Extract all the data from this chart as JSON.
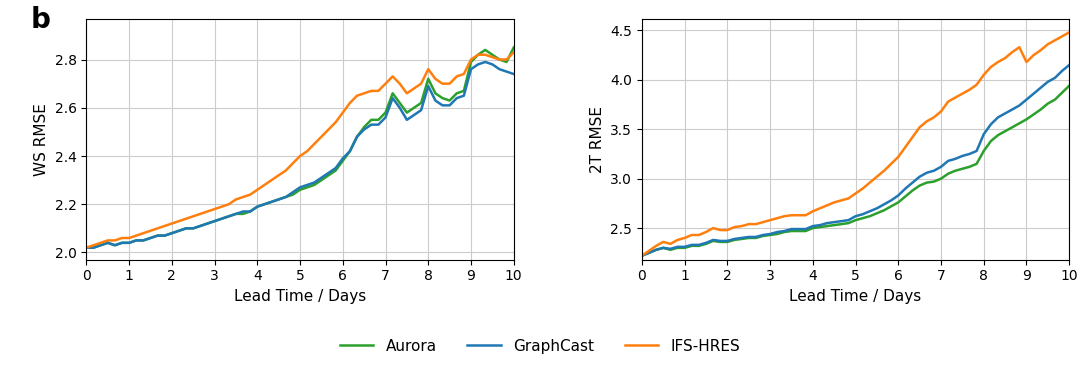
{
  "aurora_color": "#2ca02c",
  "graphcast_color": "#1f77b4",
  "ifs_color": "#ff7f0e",
  "background_color": "#ffffff",
  "grid_color": "#cccccc",
  "xlabel": "Lead Time / Days",
  "ylabel_left": "WS RMSE",
  "ylabel_right": "2T RMSE",
  "panel_label": "b",
  "legend_labels": [
    "Aurora",
    "GraphCast",
    "IFS-HRES"
  ],
  "xticks": [
    0,
    1,
    2,
    3,
    4,
    5,
    6,
    7,
    8,
    9,
    10
  ],
  "ws_x": [
    0.0,
    0.167,
    0.333,
    0.5,
    0.667,
    0.833,
    1.0,
    1.167,
    1.333,
    1.5,
    1.667,
    1.833,
    2.0,
    2.167,
    2.333,
    2.5,
    2.667,
    2.833,
    3.0,
    3.167,
    3.333,
    3.5,
    3.667,
    3.833,
    4.0,
    4.167,
    4.333,
    4.5,
    4.667,
    4.833,
    5.0,
    5.167,
    5.333,
    5.5,
    5.667,
    5.833,
    6.0,
    6.167,
    6.333,
    6.5,
    6.667,
    6.833,
    7.0,
    7.167,
    7.333,
    7.5,
    7.667,
    7.833,
    8.0,
    8.167,
    8.333,
    8.5,
    8.667,
    8.833,
    9.0,
    9.167,
    9.333,
    9.5,
    9.667,
    9.833,
    10.0
  ],
  "ws_aurora": [
    2.02,
    2.02,
    2.03,
    2.04,
    2.03,
    2.04,
    2.04,
    2.05,
    2.05,
    2.06,
    2.07,
    2.07,
    2.08,
    2.09,
    2.1,
    2.1,
    2.11,
    2.12,
    2.13,
    2.14,
    2.15,
    2.16,
    2.16,
    2.17,
    2.19,
    2.2,
    2.21,
    2.22,
    2.23,
    2.24,
    2.26,
    2.27,
    2.28,
    2.3,
    2.32,
    2.34,
    2.38,
    2.42,
    2.48,
    2.52,
    2.55,
    2.55,
    2.58,
    2.66,
    2.62,
    2.58,
    2.6,
    2.62,
    2.72,
    2.66,
    2.64,
    2.63,
    2.66,
    2.67,
    2.79,
    2.82,
    2.84,
    2.82,
    2.8,
    2.79,
    2.85
  ],
  "ws_graphcast": [
    2.02,
    2.02,
    2.03,
    2.04,
    2.03,
    2.04,
    2.04,
    2.05,
    2.05,
    2.06,
    2.07,
    2.07,
    2.08,
    2.09,
    2.1,
    2.1,
    2.11,
    2.12,
    2.13,
    2.14,
    2.15,
    2.16,
    2.17,
    2.17,
    2.19,
    2.2,
    2.21,
    2.22,
    2.23,
    2.25,
    2.27,
    2.28,
    2.29,
    2.31,
    2.33,
    2.35,
    2.39,
    2.42,
    2.48,
    2.51,
    2.53,
    2.53,
    2.56,
    2.64,
    2.6,
    2.55,
    2.57,
    2.59,
    2.69,
    2.63,
    2.61,
    2.61,
    2.64,
    2.65,
    2.76,
    2.78,
    2.79,
    2.78,
    2.76,
    2.75,
    2.74
  ],
  "ws_ifs": [
    2.02,
    2.03,
    2.04,
    2.05,
    2.05,
    2.06,
    2.06,
    2.07,
    2.08,
    2.09,
    2.1,
    2.11,
    2.12,
    2.13,
    2.14,
    2.15,
    2.16,
    2.17,
    2.18,
    2.19,
    2.2,
    2.22,
    2.23,
    2.24,
    2.26,
    2.28,
    2.3,
    2.32,
    2.34,
    2.37,
    2.4,
    2.42,
    2.45,
    2.48,
    2.51,
    2.54,
    2.58,
    2.62,
    2.65,
    2.66,
    2.67,
    2.67,
    2.7,
    2.73,
    2.7,
    2.66,
    2.68,
    2.7,
    2.76,
    2.72,
    2.7,
    2.7,
    2.73,
    2.74,
    2.8,
    2.82,
    2.82,
    2.81,
    2.8,
    2.8,
    2.83
  ],
  "t2_x": [
    0.0,
    0.167,
    0.333,
    0.5,
    0.667,
    0.833,
    1.0,
    1.167,
    1.333,
    1.5,
    1.667,
    1.833,
    2.0,
    2.167,
    2.333,
    2.5,
    2.667,
    2.833,
    3.0,
    3.167,
    3.333,
    3.5,
    3.667,
    3.833,
    4.0,
    4.167,
    4.333,
    4.5,
    4.667,
    4.833,
    5.0,
    5.167,
    5.333,
    5.5,
    5.667,
    5.833,
    6.0,
    6.167,
    6.333,
    6.5,
    6.667,
    6.833,
    7.0,
    7.167,
    7.333,
    7.5,
    7.667,
    7.833,
    8.0,
    8.167,
    8.333,
    8.5,
    8.667,
    8.833,
    9.0,
    9.167,
    9.333,
    9.5,
    9.667,
    9.833,
    10.0
  ],
  "t2_aurora": [
    2.22,
    2.25,
    2.28,
    2.3,
    2.28,
    2.3,
    2.3,
    2.32,
    2.32,
    2.34,
    2.37,
    2.36,
    2.36,
    2.38,
    2.39,
    2.4,
    2.4,
    2.42,
    2.43,
    2.44,
    2.46,
    2.47,
    2.47,
    2.47,
    2.5,
    2.51,
    2.52,
    2.53,
    2.54,
    2.55,
    2.58,
    2.6,
    2.62,
    2.65,
    2.68,
    2.72,
    2.76,
    2.82,
    2.88,
    2.93,
    2.96,
    2.97,
    3.0,
    3.05,
    3.08,
    3.1,
    3.12,
    3.15,
    3.28,
    3.38,
    3.44,
    3.48,
    3.52,
    3.56,
    3.6,
    3.65,
    3.7,
    3.76,
    3.8,
    3.87,
    3.94
  ],
  "t2_graphcast": [
    2.22,
    2.25,
    2.28,
    2.3,
    2.29,
    2.31,
    2.31,
    2.33,
    2.33,
    2.35,
    2.38,
    2.37,
    2.37,
    2.39,
    2.4,
    2.41,
    2.41,
    2.43,
    2.44,
    2.46,
    2.47,
    2.49,
    2.49,
    2.49,
    2.52,
    2.53,
    2.55,
    2.56,
    2.57,
    2.58,
    2.62,
    2.64,
    2.67,
    2.7,
    2.74,
    2.78,
    2.83,
    2.9,
    2.96,
    3.02,
    3.06,
    3.08,
    3.12,
    3.18,
    3.2,
    3.23,
    3.25,
    3.28,
    3.45,
    3.55,
    3.62,
    3.66,
    3.7,
    3.74,
    3.8,
    3.86,
    3.92,
    3.98,
    4.02,
    4.09,
    4.15
  ],
  "t2_ifs": [
    2.22,
    2.27,
    2.32,
    2.36,
    2.34,
    2.38,
    2.4,
    2.43,
    2.43,
    2.46,
    2.5,
    2.48,
    2.48,
    2.51,
    2.52,
    2.54,
    2.54,
    2.56,
    2.58,
    2.6,
    2.62,
    2.63,
    2.63,
    2.63,
    2.67,
    2.7,
    2.73,
    2.76,
    2.78,
    2.8,
    2.85,
    2.9,
    2.96,
    3.02,
    3.08,
    3.15,
    3.22,
    3.32,
    3.42,
    3.52,
    3.58,
    3.62,
    3.68,
    3.78,
    3.82,
    3.86,
    3.9,
    3.95,
    4.05,
    4.13,
    4.18,
    4.22,
    4.28,
    4.33,
    4.18,
    4.25,
    4.3,
    4.36,
    4.4,
    4.44,
    4.48
  ],
  "ws_ylim": [
    1.97,
    2.97
  ],
  "ws_yticks": [
    2.0,
    2.2,
    2.4,
    2.6,
    2.8
  ],
  "t2_ylim": [
    2.18,
    4.62
  ],
  "t2_yticks": [
    2.5,
    3.0,
    3.5,
    4.0,
    4.5
  ],
  "linewidth": 1.8
}
